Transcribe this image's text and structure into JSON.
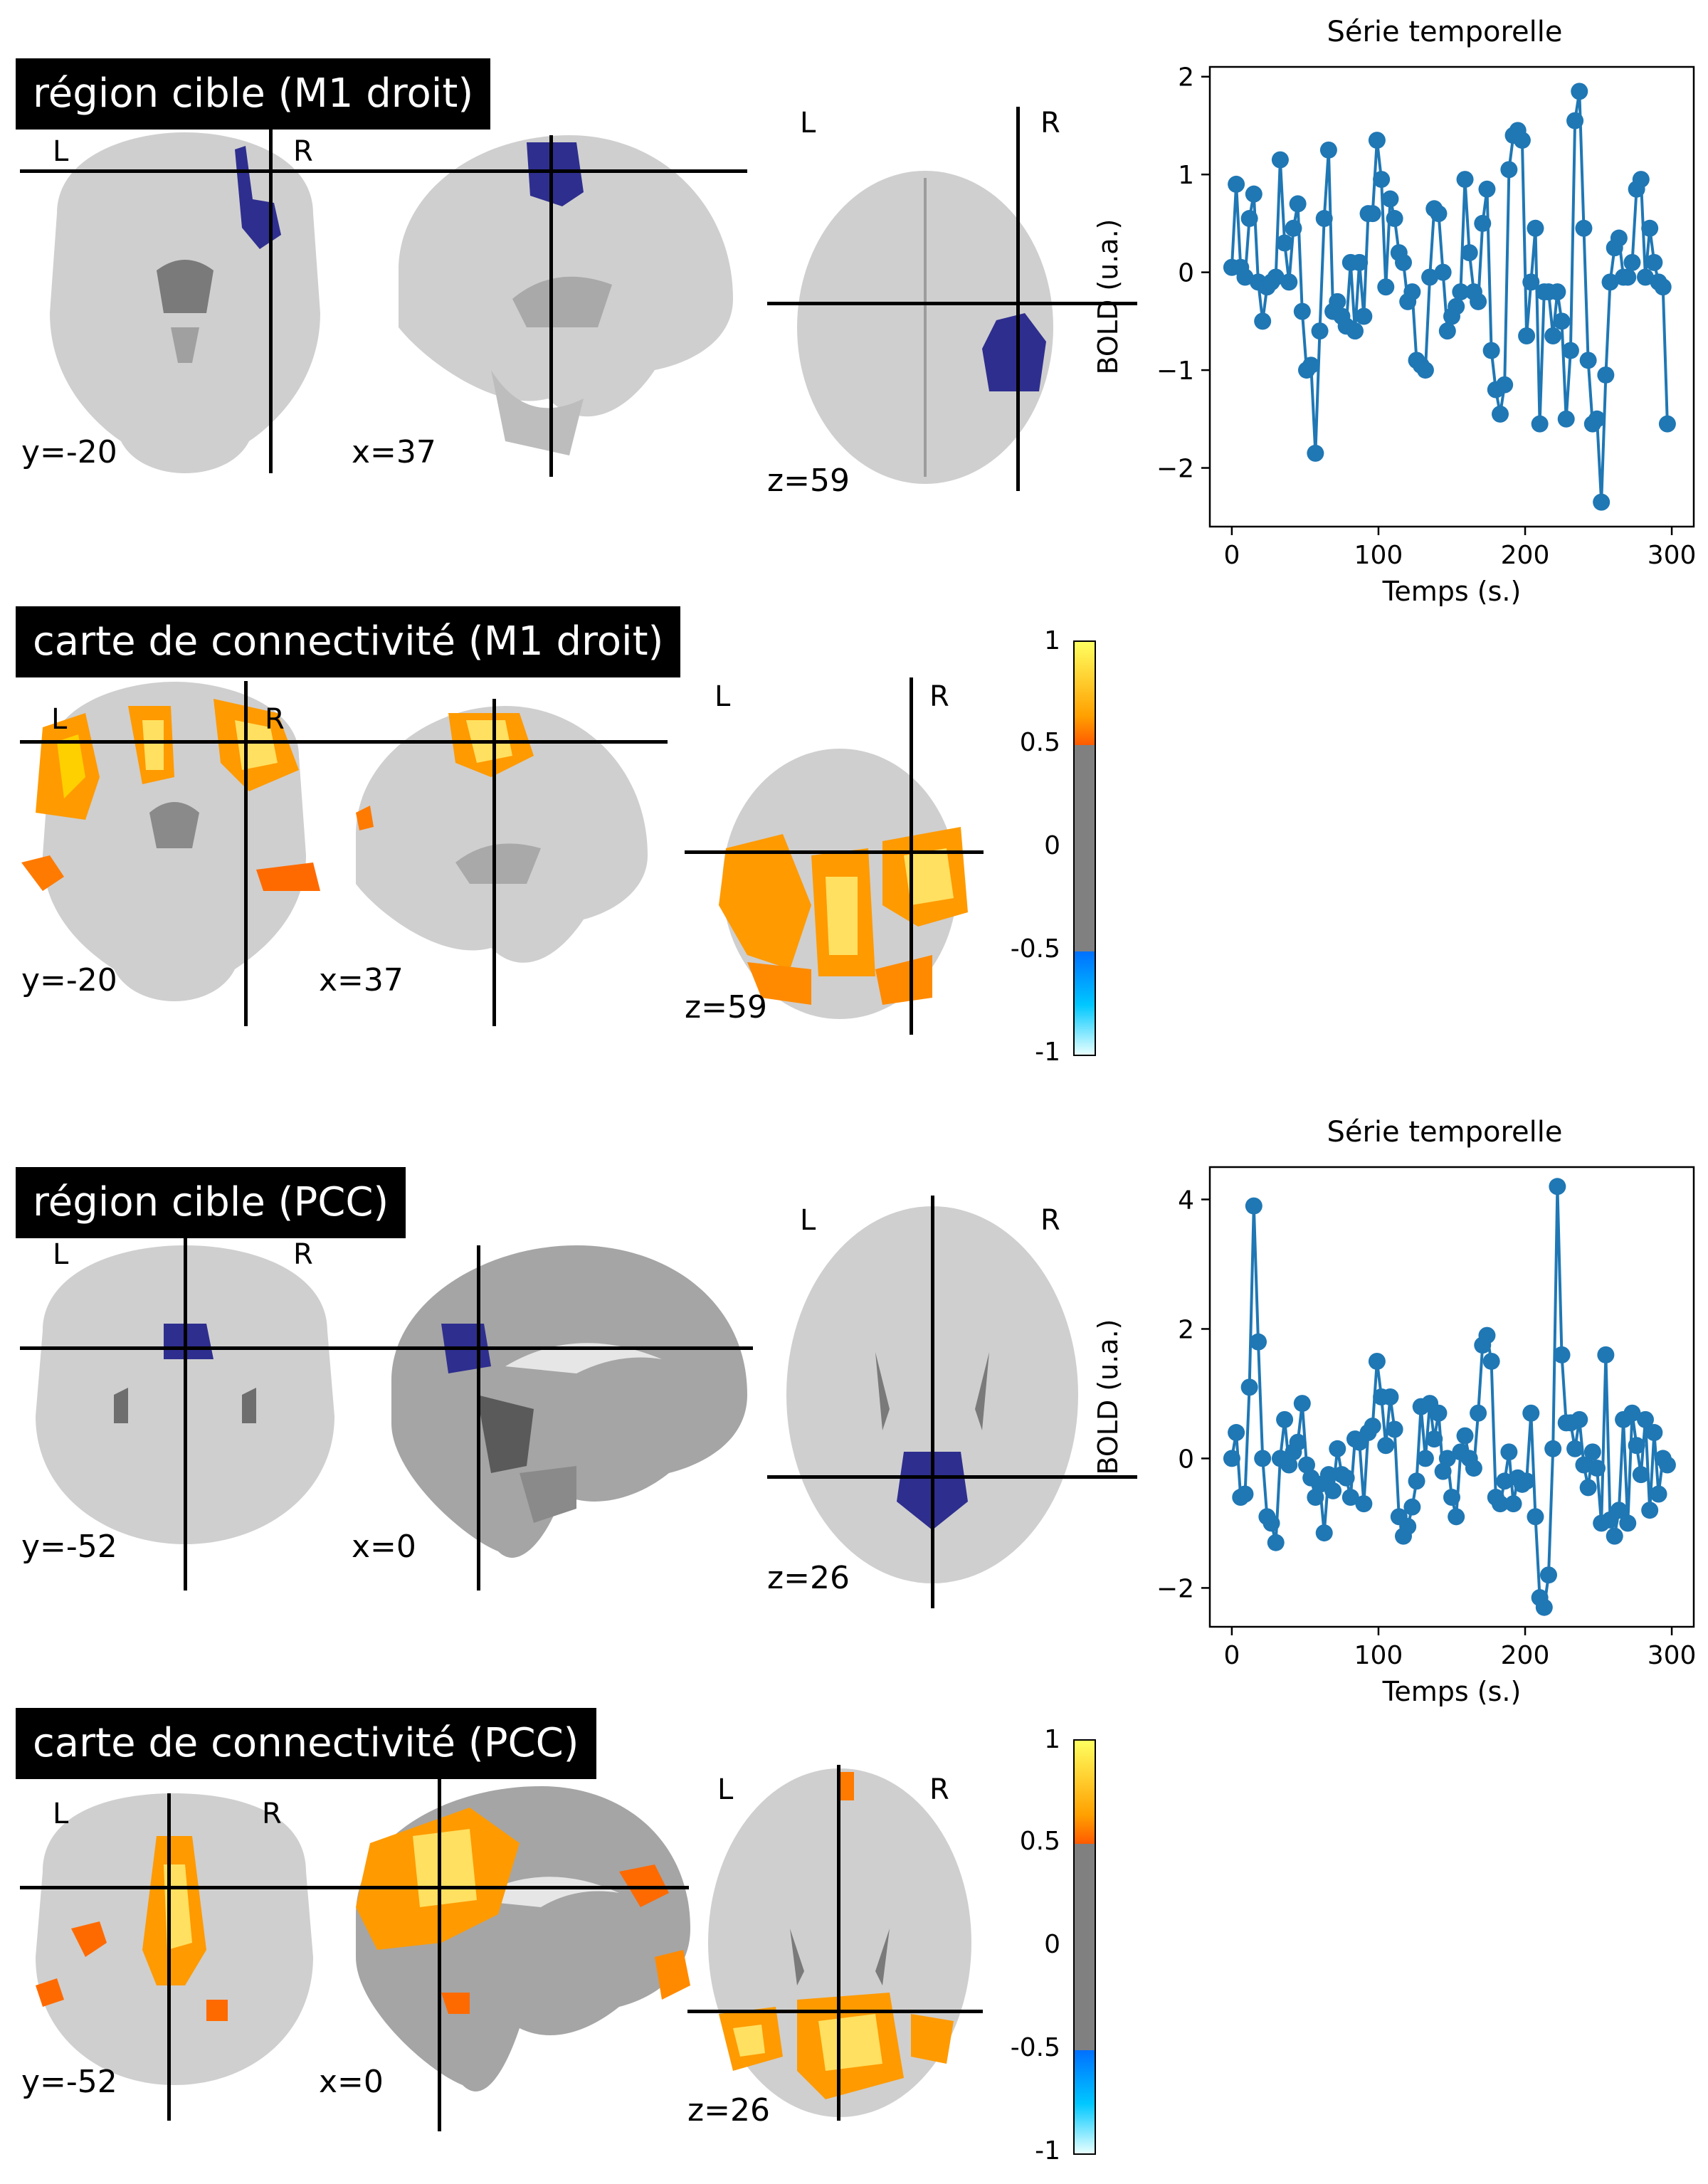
{
  "colors": {
    "tissue": "#cfcfcf",
    "tissue_dark": "#9c9c9c",
    "roi": "#2e2e8f",
    "hot_low": "#ff5a00",
    "hot_mid": "#ffa000",
    "hot_high": "#ffff60",
    "line_series": "#1f77b4",
    "crosshair": "#000000",
    "cbar_gray": "#808080",
    "cbar_blue_low": "#0070ff",
    "cbar_blue_high": "#e8ffff"
  },
  "panels": [
    {
      "title": "région cible (M1 droit)",
      "orient_left": "L",
      "orient_right": "R",
      "coords": [
        "y=-20",
        "x=37",
        "z=59"
      ],
      "overlay": "roi"
    },
    {
      "title": "carte de connectivité (M1 droit)",
      "orient_left": "L",
      "orient_right": "R",
      "coords": [
        "y=-20",
        "x=37",
        "z=59"
      ],
      "overlay": "hot"
    },
    {
      "title": "région cible (PCC)",
      "orient_left": "L",
      "orient_right": "R",
      "coords": [
        "y=-52",
        "x=0",
        "z=26"
      ],
      "overlay": "roi"
    },
    {
      "title": "carte de connectivité (PCC)",
      "orient_left": "L",
      "orient_right": "R",
      "coords": [
        "y=-52",
        "x=0",
        "z=26"
      ],
      "overlay": "hot"
    }
  ],
  "colorbar": {
    "tick_labels": [
      "1",
      "0.5",
      "0",
      "-0.5",
      "-1"
    ],
    "ticks": [
      1,
      0.5,
      0,
      -0.5,
      -1
    ],
    "vmin": -1,
    "vmax": 1,
    "threshold": 0.5
  },
  "chart_data": [
    {
      "type": "line",
      "title": "Série temporelle",
      "xlabel": "Temps (s.)",
      "ylabel": "BOLD (u.a.)",
      "xlim": [
        -15,
        315
      ],
      "ylim": [
        -2.6,
        2.1
      ],
      "xticks": [
        0,
        100,
        200,
        300
      ],
      "yticks": [
        -2,
        -1,
        0,
        1,
        2
      ],
      "xtick_labels": [
        "0",
        "100",
        "200",
        "300"
      ],
      "ytick_labels": [
        "−2",
        "−1",
        "0",
        "1",
        "2"
      ],
      "markers": true,
      "x": [
        0,
        3,
        6,
        9,
        12,
        15,
        18,
        21,
        24,
        27,
        30,
        33,
        36,
        39,
        42,
        45,
        48,
        51,
        54,
        57,
        60,
        63,
        66,
        69,
        72,
        75,
        78,
        81,
        84,
        87,
        90,
        93,
        96,
        99,
        102,
        105,
        108,
        111,
        114,
        117,
        120,
        123,
        126,
        129,
        132,
        135,
        138,
        141,
        144,
        147,
        150,
        153,
        156,
        159,
        162,
        165,
        168,
        171,
        174,
        177,
        180,
        183,
        186,
        189,
        192,
        195,
        198,
        201,
        204,
        207,
        210,
        213,
        216,
        219,
        222,
        225,
        228,
        231,
        234,
        237,
        240,
        243,
        246,
        249,
        252,
        255,
        258,
        261,
        264,
        267,
        270,
        273,
        276,
        279,
        282,
        285,
        288,
        291,
        294,
        297
      ],
      "values": [
        0.05,
        0.9,
        0.05,
        -0.05,
        0.55,
        0.8,
        -0.1,
        -0.5,
        -0.15,
        -0.1,
        -0.05,
        1.15,
        0.3,
        -0.1,
        0.45,
        0.7,
        -0.4,
        -1.0,
        -0.95,
        -1.85,
        -0.6,
        0.55,
        1.25,
        -0.4,
        -0.3,
        -0.45,
        -0.55,
        0.1,
        -0.6,
        0.1,
        -0.45,
        0.6,
        0.6,
        1.35,
        0.95,
        -0.15,
        0.75,
        0.55,
        0.2,
        0.1,
        -0.3,
        -0.2,
        -0.9,
        -0.95,
        -1.0,
        -0.05,
        0.65,
        0.6,
        0.0,
        -0.6,
        -0.45,
        -0.35,
        -0.2,
        0.95,
        0.2,
        -0.2,
        -0.3,
        0.5,
        0.85,
        -0.8,
        -1.2,
        -1.45,
        -1.15,
        1.05,
        1.4,
        1.45,
        1.35,
        -0.65,
        -0.1,
        0.45,
        -1.55,
        -0.2,
        -0.2,
        -0.65,
        -0.2,
        -0.5,
        -1.5,
        -0.8,
        1.55,
        1.85,
        0.45,
        -0.9,
        -1.55,
        -1.5,
        -2.35,
        -1.05,
        -0.1,
        0.25,
        0.35,
        -0.05,
        -0.05,
        0.1,
        0.85,
        0.95,
        -0.05,
        0.45,
        0.1,
        -0.1,
        -0.15,
        -1.55
      ]
    },
    {
      "type": "line",
      "title": "Série temporelle",
      "xlabel": "Temps (s.)",
      "ylabel": "BOLD (u.a.)",
      "xlim": [
        -15,
        315
      ],
      "ylim": [
        -2.6,
        4.5
      ],
      "xticks": [
        0,
        100,
        200,
        300
      ],
      "yticks": [
        -2,
        0,
        2,
        4
      ],
      "xtick_labels": [
        "0",
        "100",
        "200",
        "300"
      ],
      "ytick_labels": [
        "−2",
        "0",
        "2",
        "4"
      ],
      "markers": true,
      "x": [
        0,
        3,
        6,
        9,
        12,
        15,
        18,
        21,
        24,
        27,
        30,
        33,
        36,
        39,
        42,
        45,
        48,
        51,
        54,
        57,
        60,
        63,
        66,
        69,
        72,
        75,
        78,
        81,
        84,
        87,
        90,
        93,
        96,
        99,
        102,
        105,
        108,
        111,
        114,
        117,
        120,
        123,
        126,
        129,
        132,
        135,
        138,
        141,
        144,
        147,
        150,
        153,
        156,
        159,
        162,
        165,
        168,
        171,
        174,
        177,
        180,
        183,
        186,
        189,
        192,
        195,
        198,
        201,
        204,
        207,
        210,
        213,
        216,
        219,
        222,
        225,
        228,
        231,
        234,
        237,
        240,
        243,
        246,
        249,
        252,
        255,
        258,
        261,
        264,
        267,
        270,
        273,
        276,
        279,
        282,
        285,
        288,
        291,
        294,
        297
      ],
      "values": [
        0.0,
        0.4,
        -0.6,
        -0.55,
        1.1,
        3.9,
        1.8,
        0.0,
        -0.9,
        -1.0,
        -1.3,
        0.0,
        0.6,
        -0.1,
        0.1,
        0.25,
        0.85,
        -0.1,
        -0.3,
        -0.6,
        -0.4,
        -1.15,
        -0.25,
        -0.5,
        0.15,
        -0.25,
        -0.3,
        -0.6,
        0.3,
        0.25,
        -0.7,
        0.4,
        0.5,
        1.5,
        0.95,
        0.2,
        0.95,
        0.45,
        -0.9,
        -1.2,
        -1.05,
        -0.75,
        -0.35,
        0.8,
        0.0,
        0.85,
        0.3,
        0.7,
        -0.2,
        0.0,
        -0.6,
        -0.9,
        0.1,
        0.35,
        0.0,
        -0.15,
        0.7,
        1.75,
        1.9,
        1.5,
        -0.6,
        -0.7,
        -0.35,
        0.1,
        -0.7,
        -0.3,
        -0.4,
        -0.35,
        0.7,
        -0.9,
        -2.15,
        -2.3,
        -1.8,
        0.15,
        4.2,
        1.6,
        0.55,
        0.55,
        0.15,
        0.6,
        -0.1,
        -0.45,
        0.1,
        -0.15,
        -1.0,
        1.6,
        -0.95,
        -1.2,
        -0.8,
        0.6,
        -1.0,
        0.7,
        0.2,
        -0.25,
        0.6,
        -0.8,
        0.4,
        -0.55,
        0.0,
        -0.1
      ]
    }
  ]
}
